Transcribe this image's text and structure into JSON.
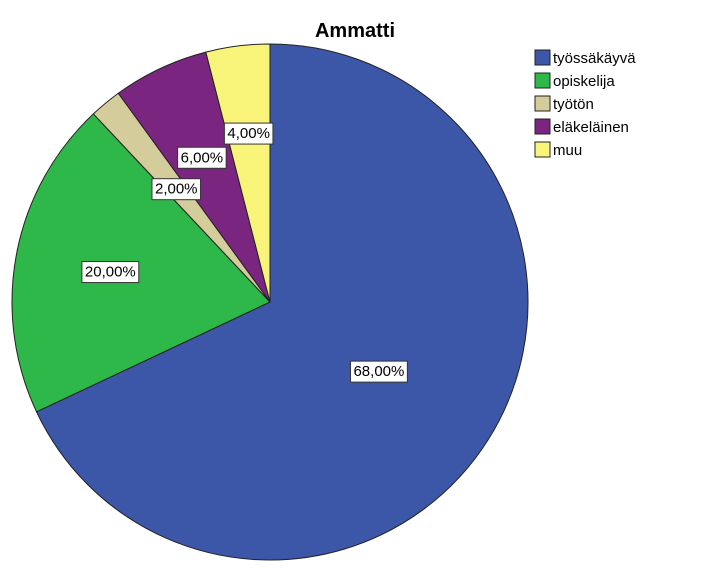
{
  "chart_data": {
    "type": "pie",
    "title": "Ammatti",
    "legend_position": "top-right",
    "start_angle_deg": 0,
    "direction": "clockwise",
    "slices": [
      {
        "label": "työssäkäyvä",
        "value": 68.0,
        "display": "68,00%",
        "color": "#3d57a8"
      },
      {
        "label": "opiskelija",
        "value": 20.0,
        "display": "20,00%",
        "color": "#2eb84a"
      },
      {
        "label": "työtön",
        "value": 2.0,
        "display": "2,00%",
        "color": "#d4cc9a"
      },
      {
        "label": "eläkeläinen",
        "value": 6.0,
        "display": "6,00%",
        "color": "#7a2680"
      },
      {
        "label": "muu",
        "value": 4.0,
        "display": "4,00%",
        "color": "#f8f47a"
      }
    ]
  }
}
